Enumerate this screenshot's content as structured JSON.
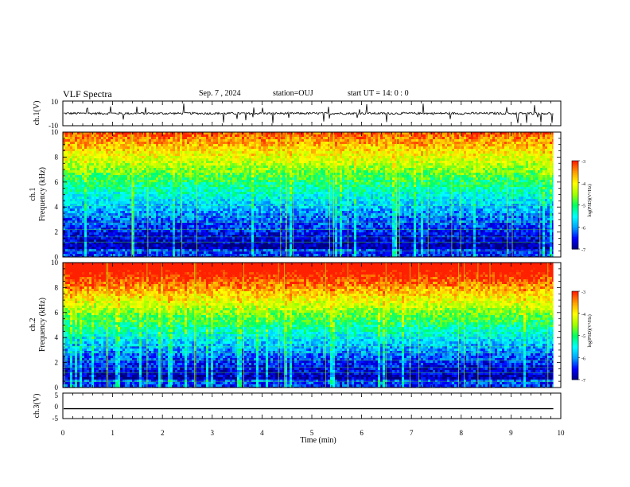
{
  "header": {
    "title": "VLF Spectra",
    "date": "Sep. 7  , 2024",
    "station": "station=OUJ",
    "start_ut": "start  UT =   14: 0  : 0"
  },
  "colors": {
    "background": "#ffffff",
    "colormap": [
      "#00007a",
      "#0000ff",
      "#00a0ff",
      "#00ffff",
      "#00ff66",
      "#a0ff00",
      "#ffff00",
      "#ffa000",
      "#ff2000"
    ]
  },
  "chart_data": [
    {
      "type": "line",
      "panel": "ch1-waveform",
      "ylabel": "ch.1(V)",
      "ylim": [
        -10,
        10
      ],
      "yticks": [
        "10",
        "-10"
      ],
      "baseline": 0
    },
    {
      "type": "heatmap",
      "panel": "ch1-spectrogram",
      "ylabel": "ch.1\nFrequency (kHz)",
      "ylim": [
        0,
        10
      ],
      "yticks": [
        "10",
        "8",
        "6",
        "4",
        "2",
        "0"
      ],
      "colorbar": {
        "label": "log(PSD)(V²/Hz)",
        "range": [
          -7,
          -3
        ],
        "ticks": [
          "-3",
          "-4",
          "-5",
          "-6",
          "-7"
        ]
      }
    },
    {
      "type": "heatmap",
      "panel": "ch2-spectrogram",
      "ylabel": "ch.2\nFrequency (kHz)",
      "ylim": [
        0,
        10
      ],
      "yticks": [
        "10",
        "8",
        "6",
        "4",
        "2",
        "0"
      ],
      "colorbar": {
        "label": "log(PSD)(V²/Hz)",
        "range": [
          -7,
          -3
        ],
        "ticks": [
          "-3",
          "-4",
          "-5",
          "-6",
          "-7"
        ]
      }
    },
    {
      "type": "line",
      "panel": "ch3-waveform",
      "ylabel": "ch.3(V)",
      "ylim": [
        -5,
        5
      ],
      "yticks": [
        "5",
        "0",
        "-5"
      ],
      "y_constant": -1.1
    }
  ],
  "xaxis": {
    "label": "Time (min)",
    "range": [
      0,
      10
    ],
    "ticks": [
      "0",
      "1",
      "2",
      "3",
      "4",
      "5",
      "6",
      "7",
      "8",
      "9",
      "10"
    ],
    "data_end": 9.85
  }
}
